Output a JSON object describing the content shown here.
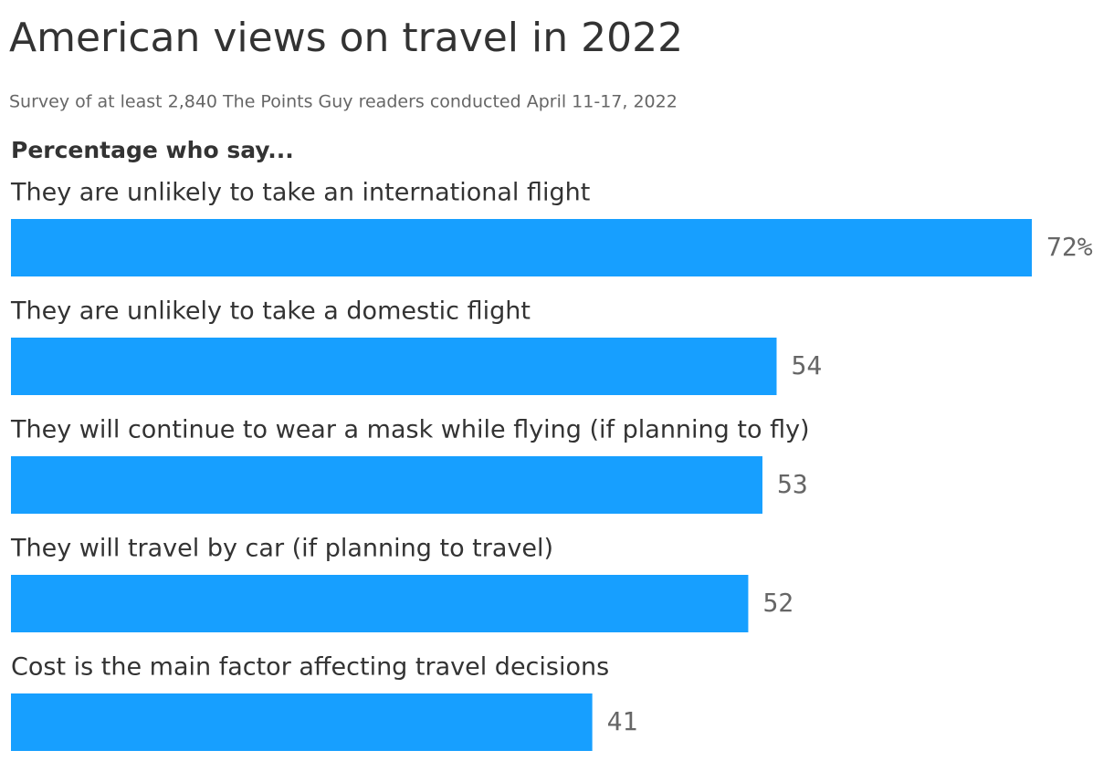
{
  "chart_data": {
    "type": "bar",
    "orientation": "horizontal",
    "title": "American views on travel in 2022",
    "subtitle": "Survey of at least 2,840 The Points Guy readers conducted April 11-17, 2022",
    "label": "Percentage who say...",
    "categories": [
      "They are unlikely to take an international flight",
      "They are unlikely to take a domestic flight",
      "They will continue to wear a mask while flying (if planning to fly)",
      "They will travel by car (if planning to travel)",
      "Cost is the main factor affecting travel decisions"
    ],
    "values": [
      72,
      54,
      53,
      52,
      41
    ],
    "value_labels": [
      "72%",
      "54",
      "53",
      "52",
      "41"
    ],
    "color": "#179fff"
  }
}
